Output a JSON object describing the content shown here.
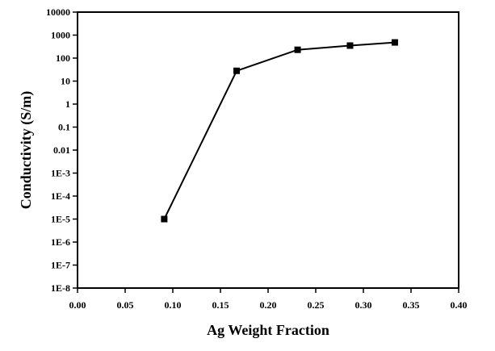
{
  "chart_data": {
    "type": "line",
    "title": "",
    "xlabel": "Ag Weight Fraction",
    "ylabel": "Conductivity (S/m)",
    "xlim": [
      0.0,
      0.4
    ],
    "ylim": [
      1e-08,
      10000
    ],
    "yscale": "log",
    "grid": false,
    "legend": "none",
    "x_ticks": [
      0.0,
      0.05,
      0.1,
      0.15,
      0.2,
      0.25,
      0.3,
      0.35,
      0.4
    ],
    "x_tick_labels": [
      "0.00",
      "0.05",
      "0.10",
      "0.15",
      "0.20",
      "0.25",
      "0.30",
      "0.35",
      "0.40"
    ],
    "y_ticks": [
      1e-08,
      1e-07,
      1e-06,
      1e-05,
      0.0001,
      0.001,
      0.01,
      0.1,
      1,
      10,
      100,
      1000,
      10000
    ],
    "y_tick_labels": [
      "1E-8",
      "1E-7",
      "1E-6",
      "1E-5",
      "1E-4",
      "1E-3",
      "0.01",
      "0.1",
      "1",
      "10",
      "100",
      "1000",
      "10000"
    ],
    "series": [
      {
        "x": [
          0.091,
          0.167,
          0.231,
          0.286,
          0.333
        ],
        "y": [
          1e-05,
          28,
          230,
          350,
          480
        ],
        "color": "#000000",
        "marker": "square"
      }
    ]
  }
}
